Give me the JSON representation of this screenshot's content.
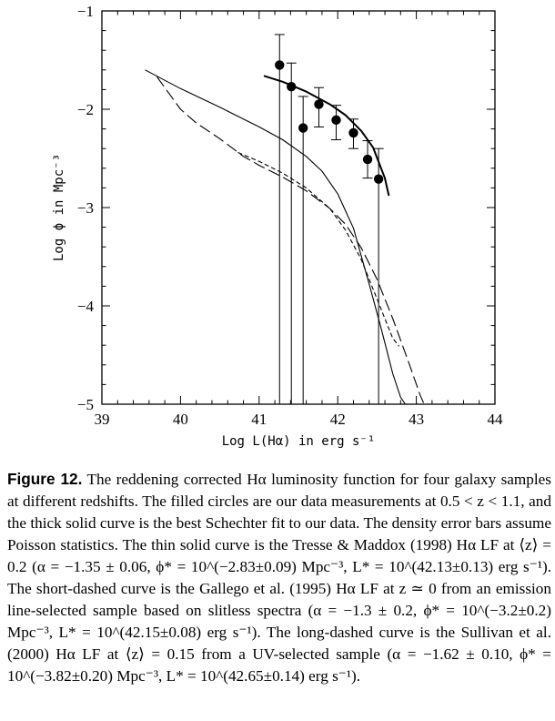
{
  "chart_data": {
    "type": "scatter",
    "xlabel": "Log L(Hα) in erg s⁻¹",
    "ylabel": "Log ϕ in Mpc⁻³",
    "xlim": [
      39,
      44
    ],
    "ylim": [
      -5,
      -1
    ],
    "x_ticks": [
      "39",
      "40",
      "41",
      "42",
      "43",
      "44"
    ],
    "y_ticks": [
      "−5",
      "−4",
      "−3",
      "−2",
      "−1"
    ],
    "grid": false,
    "series": [
      {
        "style": "filled-circles-with-error-bars",
        "points": [
          {
            "x": 41.26,
            "y": -1.55,
            "y_upper": -1.24,
            "y_lower": -5.0
          },
          {
            "x": 41.41,
            "y": -1.77,
            "y_upper": -1.53,
            "y_lower": -5.0
          },
          {
            "x": 41.56,
            "y": -2.19,
            "y_upper": -1.87,
            "y_lower": -5.0
          },
          {
            "x": 41.76,
            "y": -1.95,
            "y_upper": -1.78,
            "y_lower": -2.18
          },
          {
            "x": 41.98,
            "y": -2.11,
            "y_upper": -1.96,
            "y_lower": -2.31
          },
          {
            "x": 42.2,
            "y": -2.24,
            "y_upper": -2.1,
            "y_lower": -2.4
          },
          {
            "x": 42.38,
            "y": -2.51,
            "y_upper": -2.32,
            "y_lower": -2.7
          },
          {
            "x": 42.52,
            "y": -2.71,
            "y_upper": -2.4,
            "y_lower": -5.0
          }
        ]
      },
      {
        "style": "thick-solid",
        "x": [
          41.06,
          41.3,
          41.6,
          41.9,
          42.1,
          42.3,
          42.45,
          42.6,
          42.65
        ],
        "y": [
          -1.66,
          -1.72,
          -1.82,
          -1.95,
          -2.06,
          -2.22,
          -2.39,
          -2.7,
          -2.88
        ]
      },
      {
        "style": "thin-solid",
        "x": [
          39.55,
          40.0,
          40.5,
          41.0,
          41.3,
          41.6,
          41.8,
          42.0,
          42.2,
          42.4,
          42.55,
          42.7,
          42.8,
          42.86
        ],
        "y": [
          -1.6,
          -1.79,
          -1.98,
          -2.18,
          -2.31,
          -2.48,
          -2.63,
          -2.86,
          -3.21,
          -3.78,
          -4.22,
          -4.69,
          -4.93,
          -5.0
        ]
      },
      {
        "style": "short-dashed",
        "x": [
          40.73,
          41.0,
          41.3,
          41.6,
          41.9,
          42.1,
          42.3,
          42.5,
          42.6,
          42.7,
          42.78
        ],
        "y": [
          -2.44,
          -2.53,
          -2.65,
          -2.8,
          -3.01,
          -3.23,
          -3.53,
          -3.93,
          -4.13,
          -4.33,
          -4.41
        ]
      },
      {
        "style": "long-dashed",
        "x": [
          39.7,
          40.0,
          40.2,
          40.5,
          40.8,
          41.0,
          41.3,
          41.6,
          41.9,
          42.1,
          42.3,
          42.5,
          42.7,
          42.9,
          43.05,
          43.1
        ],
        "y": [
          -1.67,
          -2.0,
          -2.14,
          -2.3,
          -2.48,
          -2.57,
          -2.69,
          -2.83,
          -3.01,
          -3.17,
          -3.41,
          -3.73,
          -4.13,
          -4.57,
          -4.91,
          -5.0
        ]
      }
    ]
  },
  "caption": {
    "label": "Figure 12.",
    "text": "The reddening corrected Hα luminosity function for four galaxy samples at different redshifts. The filled circles are our data measurements at 0.5 < z < 1.1, and the thick solid curve is the best Schechter fit to our data. The density error bars assume Poisson statistics. The thin solid curve is the Tresse & Maddox (1998) Hα LF at ⟨z⟩ = 0.2 (α = −1.35 ± 0.06, ϕ* = 10^(−2.83±0.09) Mpc⁻³, L* = 10^(42.13±0.13) erg s⁻¹). The short-dashed curve is the Gallego et al. (1995) Hα LF at z ≃ 0 from an emission line-selected sample based on slitless spectra (α = −1.3 ± 0.2, ϕ* = 10^(−3.2±0.2) Mpc⁻³, L* = 10^(42.15±0.08) erg s⁻¹). The long-dashed curve is the Sullivan et al. (2000) Hα LF at ⟨z⟩ = 0.15 from a UV-selected sample (α = −1.62 ± 0.10, ϕ* = 10^(−3.82±0.20) Mpc⁻³, L* = 10^(42.65±0.14) erg s⁻¹)."
  }
}
